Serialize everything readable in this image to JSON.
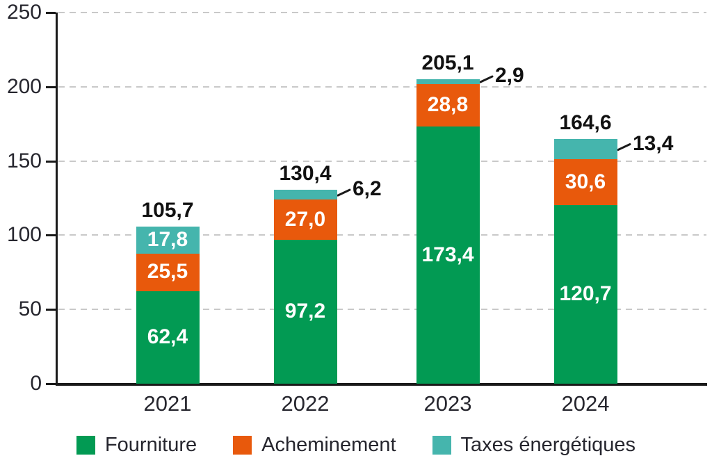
{
  "chart_data": {
    "type": "bar",
    "stacked": true,
    "title": "",
    "xlabel": "",
    "ylabel": "",
    "categories": [
      "2021",
      "2022",
      "2023",
      "2024"
    ],
    "series": [
      {
        "name": "Fourniture",
        "color": "#029a53",
        "values": [
          62.4,
          97.2,
          173.4,
          120.7
        ],
        "value_labels": [
          "62,4",
          "97,2",
          "173,4",
          "120,7"
        ]
      },
      {
        "name": "Acheminement",
        "color": "#e8590c",
        "values": [
          25.5,
          27.0,
          28.8,
          30.6
        ],
        "value_labels": [
          "25,5",
          "27,0",
          "28,8",
          "30,6"
        ]
      },
      {
        "name": "Taxes énergétiques",
        "color": "#45b5ad",
        "values": [
          17.8,
          6.2,
          2.9,
          13.4
        ],
        "value_labels": [
          "17,8",
          "6,2",
          "2,9",
          "13,4"
        ]
      }
    ],
    "totals": [
      105.7,
      130.4,
      205.1,
      164.6
    ],
    "total_labels": [
      "105,7",
      "130,4",
      "205,1",
      "164,6"
    ],
    "ylim": [
      0,
      250
    ],
    "y_ticks": [
      0,
      50,
      100,
      150,
      200,
      250
    ],
    "y_tick_labels": [
      "0",
      "50",
      "100",
      "150",
      "200",
      "250"
    ],
    "grid": "dashed-horizontal-behind-bars",
    "legend_position": "bottom",
    "outside_label_max_value": 16
  },
  "colors": {
    "axis": "#1a1a1a",
    "grid": "#c9c9c9",
    "tick_text": "#26262e",
    "total_text": "#111111",
    "segment_text": "#ffffff",
    "background": "#ffffff"
  }
}
